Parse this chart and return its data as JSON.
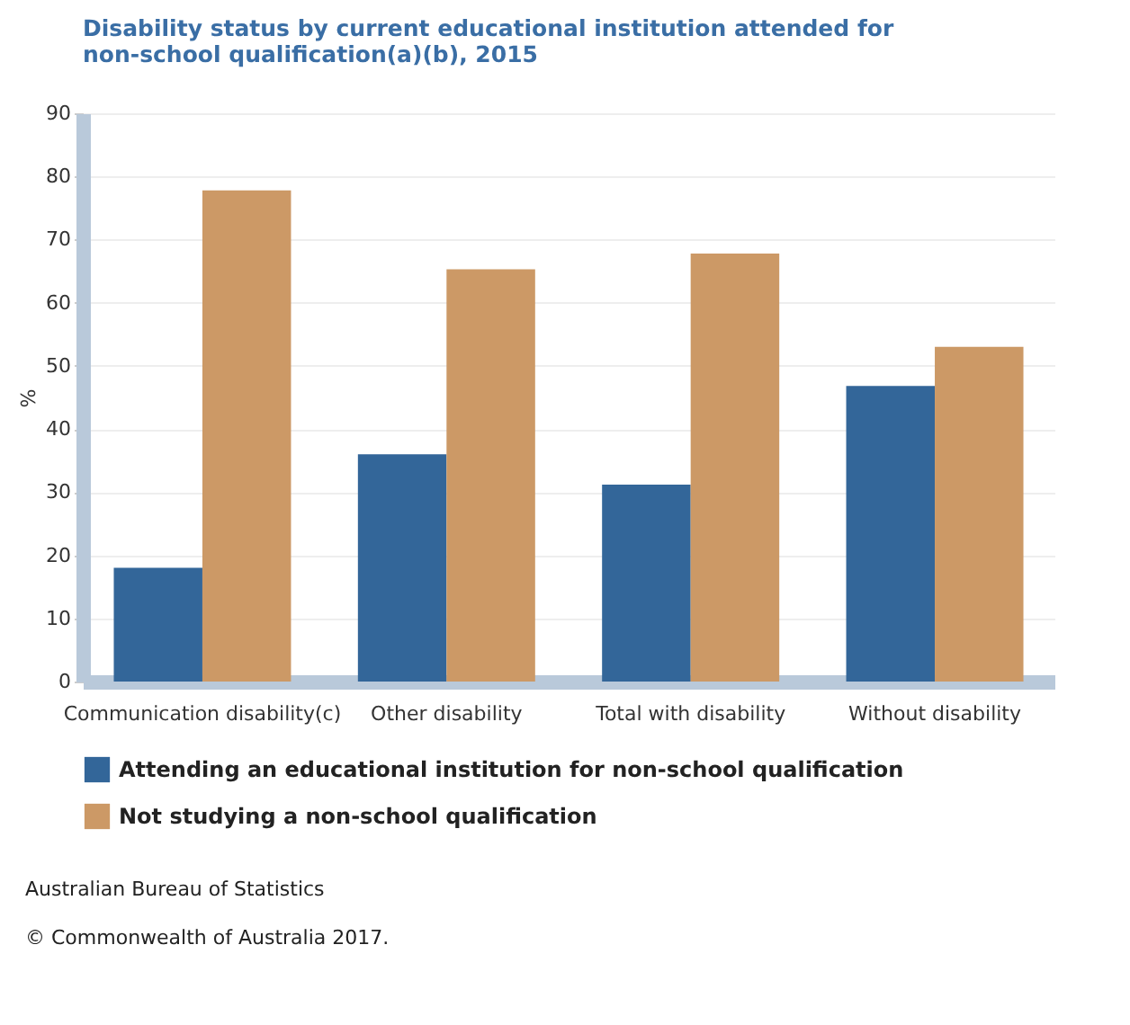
{
  "chart_data": {
    "type": "bar",
    "title": "Disability status by current educational institution attended for non-school qualification(a)(b), 2015",
    "ylabel": "%",
    "categories": [
      "Communication disability(c)",
      "Other disability",
      "Total with disability",
      "Without disability"
    ],
    "series": [
      {
        "name": "Attending an educational institution for non-school qualification",
        "color": "#336699",
        "values": [
          18,
          36,
          31.2,
          46.8
        ]
      },
      {
        "name": "Not studying a non-school qualification",
        "color": "#cc9966",
        "values": [
          77.8,
          65.3,
          67.8,
          53
        ]
      }
    ],
    "ylim": [
      0,
      90
    ],
    "yticks": [
      0,
      10,
      20,
      30,
      40,
      50,
      60,
      70,
      80,
      90
    ],
    "grid": "y",
    "legend": "bottom",
    "annotations": [
      "Australian Bureau of Statistics",
      "© Commonwealth of Australia 2017."
    ]
  }
}
